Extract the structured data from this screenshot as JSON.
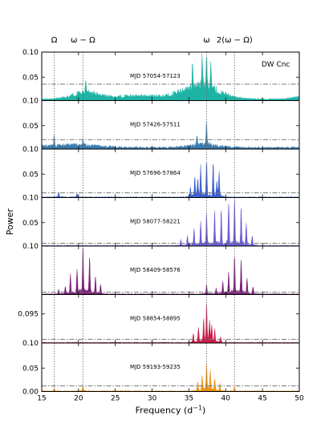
{
  "chart_data": {
    "type": "line",
    "title": "",
    "object_label": "DW Cnc",
    "xlabel": "Frequency (d$^{-1}$)",
    "xlabel_text": "Frequency (d",
    "xlabel_sup": "−1",
    "xlabel_close": ")",
    "ylabel": "Power",
    "xlim": [
      15,
      50
    ],
    "x_ticks": [
      "15",
      "20",
      "25",
      "30",
      "35",
      "40",
      "45",
      "50"
    ],
    "top_labels": [
      {
        "text": "Ω",
        "x": 16.7
      },
      {
        "text": "ω − Ω",
        "x": 20.6
      },
      {
        "text": "ω",
        "x": 37.4
      },
      {
        "text": "2(ω − Ω)",
        "x": 41.2
      }
    ],
    "vlines": [
      16.7,
      20.6,
      37.4,
      41.2
    ],
    "panels": [
      {
        "label": "MJD 57054-57123",
        "color": "#1db3a5",
        "ylim": [
          0,
          0.1
        ],
        "yticks": [
          "0.10",
          "0.05"
        ],
        "threshold": 0.035,
        "shape": "broad",
        "peaks": [
          {
            "x": 37.4,
            "y": 0.055
          },
          {
            "x": 36.8,
            "y": 0.06
          },
          {
            "x": 38.0,
            "y": 0.05
          },
          {
            "x": 35.5,
            "y": 0.045
          },
          {
            "x": 21.0,
            "y": 0.025
          }
        ]
      },
      {
        "label": "MJD 57426-57511",
        "color": "#3a7aab",
        "ylim": [
          0,
          0.1
        ],
        "yticks": [
          "0.10",
          "0.05"
        ],
        "threshold": 0.02,
        "shape": "flat",
        "peaks": [
          {
            "x": 37.4,
            "y": 0.045
          },
          {
            "x": 36.1,
            "y": 0.025
          },
          {
            "x": 16.7,
            "y": 0.02
          },
          {
            "x": 20.6,
            "y": 0.015
          }
        ]
      },
      {
        "label": "MJD 57696-57864",
        "color": "#3b5fd0",
        "ylim": [
          0,
          0.1
        ],
        "yticks": [
          "0.10",
          "0.05"
        ],
        "threshold": 0.01,
        "shape": "lines",
        "peaks": [
          {
            "x": 37.4,
            "y": 0.075
          },
          {
            "x": 36.6,
            "y": 0.06
          },
          {
            "x": 38.3,
            "y": 0.07
          },
          {
            "x": 39.1,
            "y": 0.05
          },
          {
            "x": 35.8,
            "y": 0.04
          },
          {
            "x": 35.2,
            "y": 0.02
          },
          {
            "x": 36.2,
            "y": 0.035
          },
          {
            "x": 38.8,
            "y": 0.03
          },
          {
            "x": 17.3,
            "y": 0.01
          },
          {
            "x": 19.8,
            "y": 0.008
          }
        ]
      },
      {
        "label": "MJD 58077-58221",
        "color": "#6a5bd8",
        "ylim": [
          0,
          0.1
        ],
        "yticks": [
          "0.10",
          "0.05"
        ],
        "threshold": 0.006,
        "shape": "lines",
        "peaks": [
          {
            "x": 37.4,
            "y": 0.066
          },
          {
            "x": 38.5,
            "y": 0.07
          },
          {
            "x": 36.6,
            "y": 0.05
          },
          {
            "x": 39.4,
            "y": 0.075
          },
          {
            "x": 40.4,
            "y": 0.09
          },
          {
            "x": 41.2,
            "y": 0.1
          },
          {
            "x": 42.1,
            "y": 0.08
          },
          {
            "x": 42.8,
            "y": 0.045
          },
          {
            "x": 35.7,
            "y": 0.035
          },
          {
            "x": 34.8,
            "y": 0.02
          },
          {
            "x": 43.6,
            "y": 0.02
          },
          {
            "x": 33.9,
            "y": 0.012
          }
        ]
      },
      {
        "label": "MJD 58409-58576",
        "color": "#7b1f7a",
        "ylim": [
          0,
          0.1
        ],
        "yticks": [
          "0.10"
        ],
        "threshold": 0.005,
        "shape": "lines",
        "peaks": [
          {
            "x": 20.6,
            "y": 0.1
          },
          {
            "x": 21.5,
            "y": 0.08
          },
          {
            "x": 19.8,
            "y": 0.05
          },
          {
            "x": 18.9,
            "y": 0.04
          },
          {
            "x": 22.3,
            "y": 0.035
          },
          {
            "x": 23.0,
            "y": 0.02
          },
          {
            "x": 18.2,
            "y": 0.015
          },
          {
            "x": 17.3,
            "y": 0.01
          },
          {
            "x": 41.2,
            "y": 0.08
          },
          {
            "x": 42.1,
            "y": 0.07
          },
          {
            "x": 40.4,
            "y": 0.045
          },
          {
            "x": 39.6,
            "y": 0.025
          },
          {
            "x": 37.4,
            "y": 0.02
          },
          {
            "x": 42.9,
            "y": 0.03
          },
          {
            "x": 43.7,
            "y": 0.015
          },
          {
            "x": 38.7,
            "y": 0.012
          }
        ]
      },
      {
        "label": "MJD 58854-58895",
        "color": "#d2194a",
        "ylim": [
          0,
          0.1
        ],
        "yticks": [
          "0.095"
        ],
        "threshold": 0.008,
        "shape": "lines",
        "peaks": [
          {
            "x": 37.4,
            "y": 0.075
          },
          {
            "x": 37.0,
            "y": 0.045
          },
          {
            "x": 37.8,
            "y": 0.04
          },
          {
            "x": 36.3,
            "y": 0.03
          },
          {
            "x": 38.5,
            "y": 0.025
          },
          {
            "x": 35.6,
            "y": 0.018
          },
          {
            "x": 39.3,
            "y": 0.012
          },
          {
            "x": 38.1,
            "y": 0.033
          }
        ]
      },
      {
        "label": "MJD 59193-59235",
        "color": "#f0930a",
        "ylim": [
          0,
          0.1
        ],
        "yticks": [
          "0.10",
          "0.05",
          "0.00"
        ],
        "threshold": 0.012,
        "shape": "lines",
        "peaks": [
          {
            "x": 37.4,
            "y": 0.055
          },
          {
            "x": 37.9,
            "y": 0.04
          },
          {
            "x": 36.8,
            "y": 0.03
          },
          {
            "x": 38.5,
            "y": 0.025
          },
          {
            "x": 36.2,
            "y": 0.018
          },
          {
            "x": 39.2,
            "y": 0.015
          },
          {
            "x": 20.6,
            "y": 0.01
          },
          {
            "x": 41.2,
            "y": 0.008
          },
          {
            "x": 16.7,
            "y": 0.006
          }
        ]
      }
    ]
  }
}
